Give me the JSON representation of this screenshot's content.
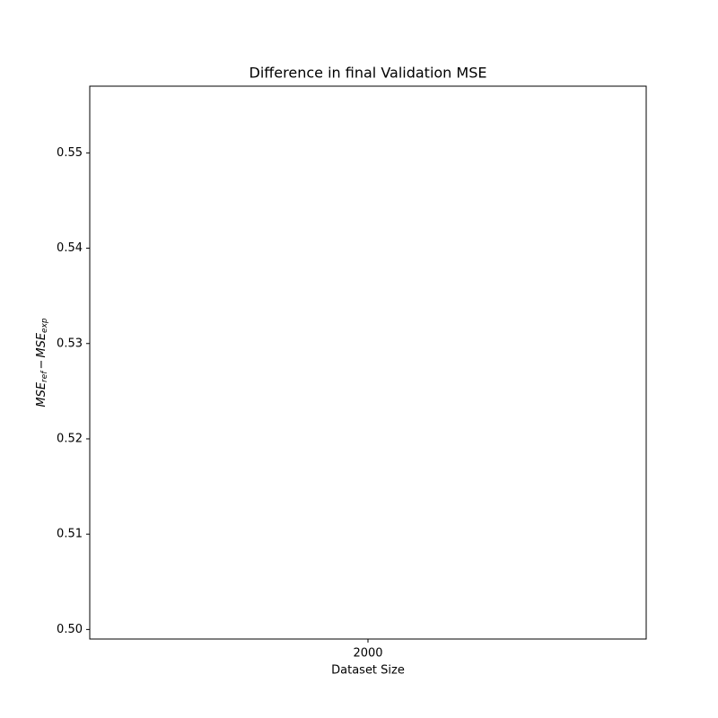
{
  "chart_data": {
    "type": "bar",
    "title": "Difference in final Validation MSE",
    "xlabel": "Dataset Size",
    "ylabel": {
      "parts": [
        "MSE",
        "ref",
        "−",
        "MSE",
        "exp"
      ]
    },
    "categories": [
      "2000"
    ],
    "ylim": [
      0.499,
      0.557
    ],
    "yticks": [
      {
        "value": 0.5,
        "label": "0.50"
      },
      0.51,
      0.52,
      0.53,
      0.54,
      0.55
    ],
    "grid": false
  }
}
